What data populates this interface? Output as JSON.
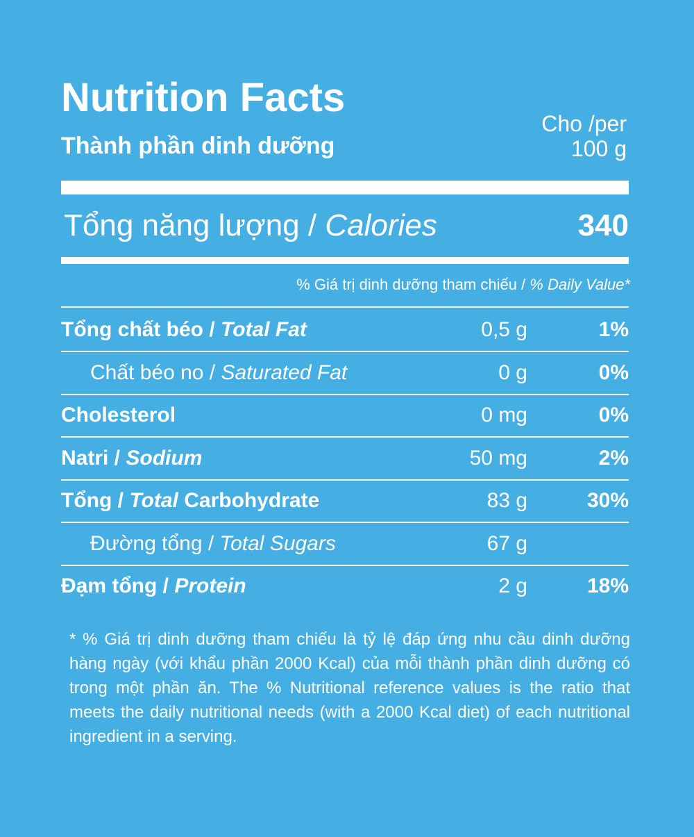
{
  "header": {
    "title": "Nutrition Facts",
    "subtitle": "Thành phần dinh dưỡng",
    "per_label": "Cho /per",
    "per_amount": "100 g"
  },
  "calories": {
    "label_vi": "Tổng năng lượng /",
    "label_en": "Calories",
    "value": "340"
  },
  "daily_value_header": {
    "vi": "% Giá trị dinh dưỡng tham chiếu /",
    "en": "% Daily Value*"
  },
  "rows": [
    {
      "label": [
        {
          "text": "Tổng chất béo /",
          "italic": false
        },
        {
          "text": "Total Fat",
          "italic": true
        }
      ],
      "bold": true,
      "indent": false,
      "amount": "0,5 g",
      "dv": "1%"
    },
    {
      "label": [
        {
          "text": "Chất béo no /",
          "italic": false
        },
        {
          "text": "Saturated Fat",
          "italic": true
        }
      ],
      "bold": false,
      "indent": true,
      "amount": "0 g",
      "dv": "0%"
    },
    {
      "label": [
        {
          "text": "Cholesterol",
          "italic": false
        }
      ],
      "bold": true,
      "indent": false,
      "amount": "0 mg",
      "dv": "0%"
    },
    {
      "label": [
        {
          "text": "Natri /",
          "italic": false
        },
        {
          "text": "Sodium",
          "italic": true
        }
      ],
      "bold": true,
      "indent": false,
      "amount": "50 mg",
      "dv": "2%"
    },
    {
      "label": [
        {
          "text": "Tổng /",
          "italic": false
        },
        {
          "text": "Total",
          "italic": true
        },
        {
          "text": "Carbohydrate",
          "italic": false
        }
      ],
      "bold": true,
      "indent": false,
      "amount": "83 g",
      "dv": "30%"
    },
    {
      "label": [
        {
          "text": "Đường tổng /",
          "italic": false
        },
        {
          "text": "Total Sugars",
          "italic": true
        }
      ],
      "bold": false,
      "indent": true,
      "amount": "67 g",
      "dv": null
    },
    {
      "label": [
        {
          "text": "Đạm tổng /",
          "italic": false
        },
        {
          "text": "Protein",
          "italic": true
        }
      ],
      "bold": true,
      "indent": false,
      "amount": "2 g",
      "dv": "18%"
    }
  ],
  "footnote": "*  % Giá trị dinh dưỡng tham chiếu là tỷ lệ đáp ứng nhu cầu dinh dưỡng hàng ngày (với khẩu phần 2000 Kcal) của mỗi thành phần dinh dưỡng có trong một phần ăn.  The % Nutritional reference values is the ratio that meets the daily nutritional needs (with a 2000 Kcal diet) of each nutritional ingredient in a serving."
}
